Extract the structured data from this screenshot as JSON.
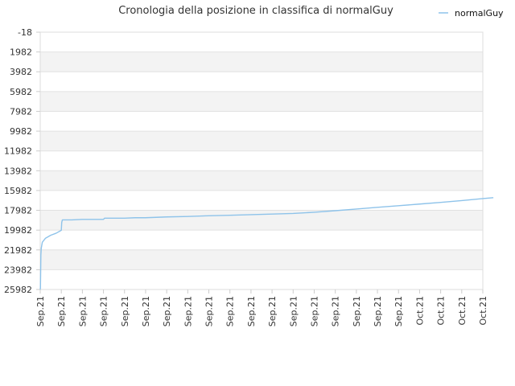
{
  "chart_data": {
    "type": "line",
    "title": "Cronologia della posizione in classifica di normalGuy",
    "xlabel": "",
    "ylabel": "",
    "y_axis_reversed": true,
    "ylim": [
      -18,
      25982
    ],
    "y_ticks": [
      -18,
      1982,
      3982,
      5982,
      7982,
      9982,
      11982,
      13982,
      15982,
      17982,
      19982,
      21982,
      23982,
      25982
    ],
    "x_tick_labels": [
      "Sep.21",
      "Sep.21",
      "Sep.21",
      "Sep.21",
      "Sep.21",
      "Sep.21",
      "Sep.21",
      "Sep.21",
      "Sep.21",
      "Sep.21",
      "Sep.21",
      "Sep.21",
      "Sep.21",
      "Sep.21",
      "Sep.21",
      "Sep.21",
      "Sep.21",
      "Sep.21",
      "Oct.21",
      "Oct.21",
      "Oct.21",
      "Oct.21"
    ],
    "grid": true,
    "legend_position": "top-right",
    "series": [
      {
        "name": "normalGuy",
        "color": "#8ec3ea",
        "x": [
          0,
          0.01,
          0.03,
          0.05,
          0.1,
          0.25,
          0.5,
          0.75,
          1.0,
          1.02,
          1.05,
          1.5,
          2.0,
          3.0,
          3.05,
          4.0,
          4.5,
          5.0,
          6.0,
          7.0,
          8.0,
          9.0,
          10.0,
          11.0,
          12.0,
          13.0,
          14.0,
          15.0,
          16.0,
          17.0,
          18.0,
          19.0,
          20.0,
          21.0,
          21.5
        ],
        "y": [
          25982,
          25800,
          22500,
          21800,
          21200,
          20800,
          20500,
          20300,
          20000,
          19200,
          18950,
          18950,
          18900,
          18900,
          18780,
          18780,
          18730,
          18730,
          18650,
          18600,
          18530,
          18480,
          18420,
          18360,
          18300,
          18180,
          18020,
          17850,
          17680,
          17520,
          17350,
          17180,
          17000,
          16800,
          16700
        ]
      }
    ]
  }
}
